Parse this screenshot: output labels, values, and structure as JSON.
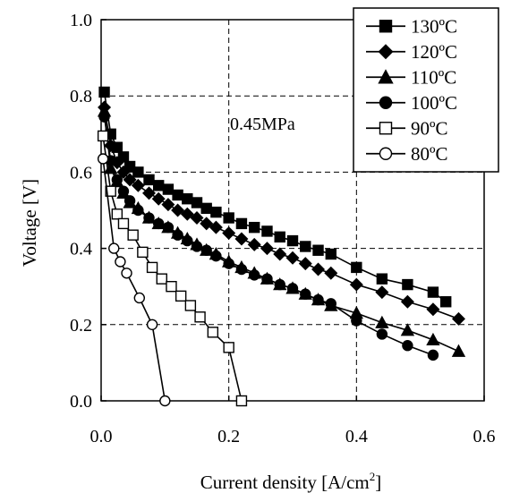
{
  "chart_data": {
    "type": "line",
    "title": "",
    "xlabel": "Current density [A/cm",
    "xlabel_sup": "2",
    "xlabel_end": "]",
    "ylabel": "Voltage [V]",
    "xlim": [
      0.0,
      0.6
    ],
    "ylim": [
      0.0,
      1.0
    ],
    "xticks": [
      0.0,
      0.2,
      0.4,
      0.6
    ],
    "xtick_labels": [
      "0.0",
      "0.2",
      "0.4",
      "0.6"
    ],
    "yticks": [
      0.0,
      0.2,
      0.4,
      0.6,
      0.8,
      1.0
    ],
    "ytick_labels": [
      "0.0",
      "0.2",
      "0.4",
      "0.6",
      "0.8",
      "1.0"
    ],
    "grid": true,
    "legend_position": "top-right",
    "annotation": "0.45MPa",
    "series": [
      {
        "name": "130ºC",
        "marker": "square-filled",
        "x": [
          0.005,
          0.015,
          0.025,
          0.035,
          0.045,
          0.058,
          0.075,
          0.09,
          0.105,
          0.12,
          0.135,
          0.15,
          0.165,
          0.18,
          0.2,
          0.22,
          0.24,
          0.26,
          0.28,
          0.3,
          0.32,
          0.34,
          0.36,
          0.4,
          0.44,
          0.48,
          0.52,
          0.54
        ],
        "y": [
          0.81,
          0.7,
          0.665,
          0.64,
          0.615,
          0.6,
          0.58,
          0.565,
          0.555,
          0.54,
          0.53,
          0.52,
          0.505,
          0.495,
          0.48,
          0.465,
          0.455,
          0.445,
          0.43,
          0.42,
          0.405,
          0.395,
          0.385,
          0.35,
          0.32,
          0.305,
          0.285,
          0.26
        ]
      },
      {
        "name": "120ºC",
        "marker": "diamond-filled",
        "x": [
          0.005,
          0.015,
          0.025,
          0.035,
          0.045,
          0.058,
          0.075,
          0.09,
          0.105,
          0.12,
          0.135,
          0.15,
          0.165,
          0.18,
          0.2,
          0.22,
          0.24,
          0.26,
          0.28,
          0.3,
          0.32,
          0.34,
          0.36,
          0.4,
          0.44,
          0.48,
          0.52,
          0.56
        ],
        "y": [
          0.77,
          0.67,
          0.625,
          0.6,
          0.58,
          0.565,
          0.545,
          0.53,
          0.515,
          0.5,
          0.49,
          0.48,
          0.465,
          0.455,
          0.44,
          0.425,
          0.41,
          0.4,
          0.385,
          0.375,
          0.36,
          0.345,
          0.335,
          0.305,
          0.285,
          0.26,
          0.24,
          0.215
        ]
      },
      {
        "name": "110ºC",
        "marker": "triangle-filled",
        "x": [
          0.005,
          0.015,
          0.025,
          0.035,
          0.045,
          0.058,
          0.075,
          0.09,
          0.105,
          0.12,
          0.135,
          0.15,
          0.165,
          0.18,
          0.2,
          0.22,
          0.24,
          0.26,
          0.28,
          0.3,
          0.32,
          0.34,
          0.36,
          0.4,
          0.44,
          0.48,
          0.52,
          0.56
        ],
        "y": [
          0.76,
          0.61,
          0.575,
          0.545,
          0.52,
          0.505,
          0.48,
          0.465,
          0.455,
          0.44,
          0.425,
          0.41,
          0.395,
          0.385,
          0.365,
          0.35,
          0.335,
          0.32,
          0.305,
          0.295,
          0.28,
          0.265,
          0.25,
          0.23,
          0.205,
          0.185,
          0.16,
          0.13
        ]
      },
      {
        "name": "100ºC",
        "marker": "circle-filled",
        "x": [
          0.005,
          0.015,
          0.025,
          0.035,
          0.045,
          0.058,
          0.075,
          0.09,
          0.105,
          0.12,
          0.135,
          0.15,
          0.165,
          0.18,
          0.2,
          0.22,
          0.24,
          0.26,
          0.28,
          0.3,
          0.32,
          0.34,
          0.36,
          0.4,
          0.44,
          0.48,
          0.52
        ],
        "y": [
          0.745,
          0.63,
          0.58,
          0.55,
          0.525,
          0.5,
          0.48,
          0.465,
          0.455,
          0.435,
          0.42,
          0.405,
          0.395,
          0.38,
          0.36,
          0.345,
          0.33,
          0.32,
          0.305,
          0.295,
          0.28,
          0.265,
          0.255,
          0.21,
          0.175,
          0.145,
          0.12
        ]
      },
      {
        "name": "90ºC",
        "marker": "square-open",
        "x": [
          0.003,
          0.015,
          0.025,
          0.035,
          0.05,
          0.065,
          0.08,
          0.095,
          0.11,
          0.125,
          0.14,
          0.155,
          0.175,
          0.2,
          0.22
        ],
        "y": [
          0.695,
          0.55,
          0.49,
          0.465,
          0.435,
          0.39,
          0.35,
          0.32,
          0.3,
          0.275,
          0.25,
          0.22,
          0.18,
          0.14,
          0.0
        ]
      },
      {
        "name": "80ºC",
        "marker": "circle-open",
        "x": [
          0.003,
          0.02,
          0.03,
          0.04,
          0.06,
          0.08,
          0.1
        ],
        "y": [
          0.635,
          0.4,
          0.365,
          0.335,
          0.27,
          0.2,
          0.0
        ]
      }
    ]
  }
}
